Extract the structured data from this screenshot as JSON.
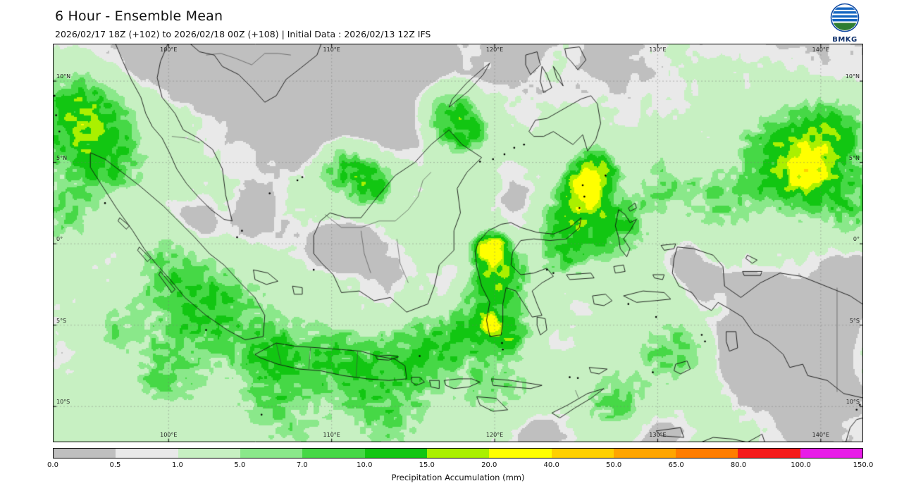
{
  "header": {
    "title": "6 Hour - Ensemble Mean",
    "subtitle": "2026/02/17 18Z (+102) to 2026/02/18 00Z (+108) | Initial Data : 2026/02/13 12Z IFS",
    "logo_text": "BMKG"
  },
  "map": {
    "lon_ticks": [
      "100°E",
      "110°E",
      "120°E",
      "130°E",
      "140°E"
    ],
    "lon_tick_values": [
      100,
      110,
      120,
      130,
      140
    ],
    "lat_ticks": [
      "10°N",
      "5°N",
      "0°",
      "5°S",
      "10°S"
    ],
    "lat_tick_values": [
      10,
      5,
      0,
      -5,
      -10
    ]
  },
  "colorbar": {
    "label": "Precipitation Accumulation (mm)",
    "ticks": [
      "0.0",
      "0.5",
      "1.0",
      "5.0",
      "7.0",
      "10.0",
      "15.0",
      "20.0",
      "40.0",
      "50.0",
      "65.0",
      "80.0",
      "100.0",
      "150.0"
    ],
    "thresholds": [
      0,
      0.5,
      1,
      5,
      7,
      10,
      15,
      20,
      40,
      50,
      65,
      80,
      100,
      150
    ],
    "colors": [
      "#bfbfbf",
      "#e9e9e9",
      "#c7f0c2",
      "#8ae88a",
      "#46d846",
      "#12c612",
      "#aaf000",
      "#ffff00",
      "#ffd000",
      "#ffa500",
      "#ff7d00",
      "#f51b1b",
      "#e81ce8"
    ]
  },
  "chart_data": {
    "type": "heatmap",
    "title": "6 Hour - Ensemble Mean",
    "subtitle": "2026/02/17 18Z (+102) to 2026/02/18 00Z (+108) | Initial Data : 2026/02/13 12Z IFS",
    "variable": "Precipitation Accumulation (mm)",
    "x_ticks": [
      "100°E",
      "110°E",
      "120°E",
      "130°E",
      "140°E"
    ],
    "y_ticks": [
      "10°N",
      "5°N",
      "0°",
      "5°S",
      "10°S"
    ],
    "scale_thresholds_mm": [
      0,
      0.5,
      1,
      5,
      7,
      10,
      15,
      20,
      40,
      50,
      65,
      80,
      100,
      150
    ],
    "scale_colors": [
      "#bfbfbf",
      "#e9e9e9",
      "#c7f0c2",
      "#8ae88a",
      "#46d846",
      "#12c612",
      "#aaf000",
      "#ffff00",
      "#ffd000",
      "#ffa500",
      "#ff7d00",
      "#f51b1b",
      "#e81ce8"
    ],
    "high_accumulation_areas_approx_20_40mm": [
      "west coast of Central Sulawesi (~120E, 0)",
      "North Maluku sea (~126E, 4N)",
      "Pacific northeast of map (~139E, 5N)",
      "northwest of Aceh (~95E, 7.5N)"
    ],
    "low_accumulation_areas_lt_0_5mm": [
      "South China Sea (105-116E, 8-12N)",
      "Java Sea (111-117E, 4-6S)",
      "interior Papua and Arafura Sea (133-142E, 2-9S)"
    ]
  }
}
